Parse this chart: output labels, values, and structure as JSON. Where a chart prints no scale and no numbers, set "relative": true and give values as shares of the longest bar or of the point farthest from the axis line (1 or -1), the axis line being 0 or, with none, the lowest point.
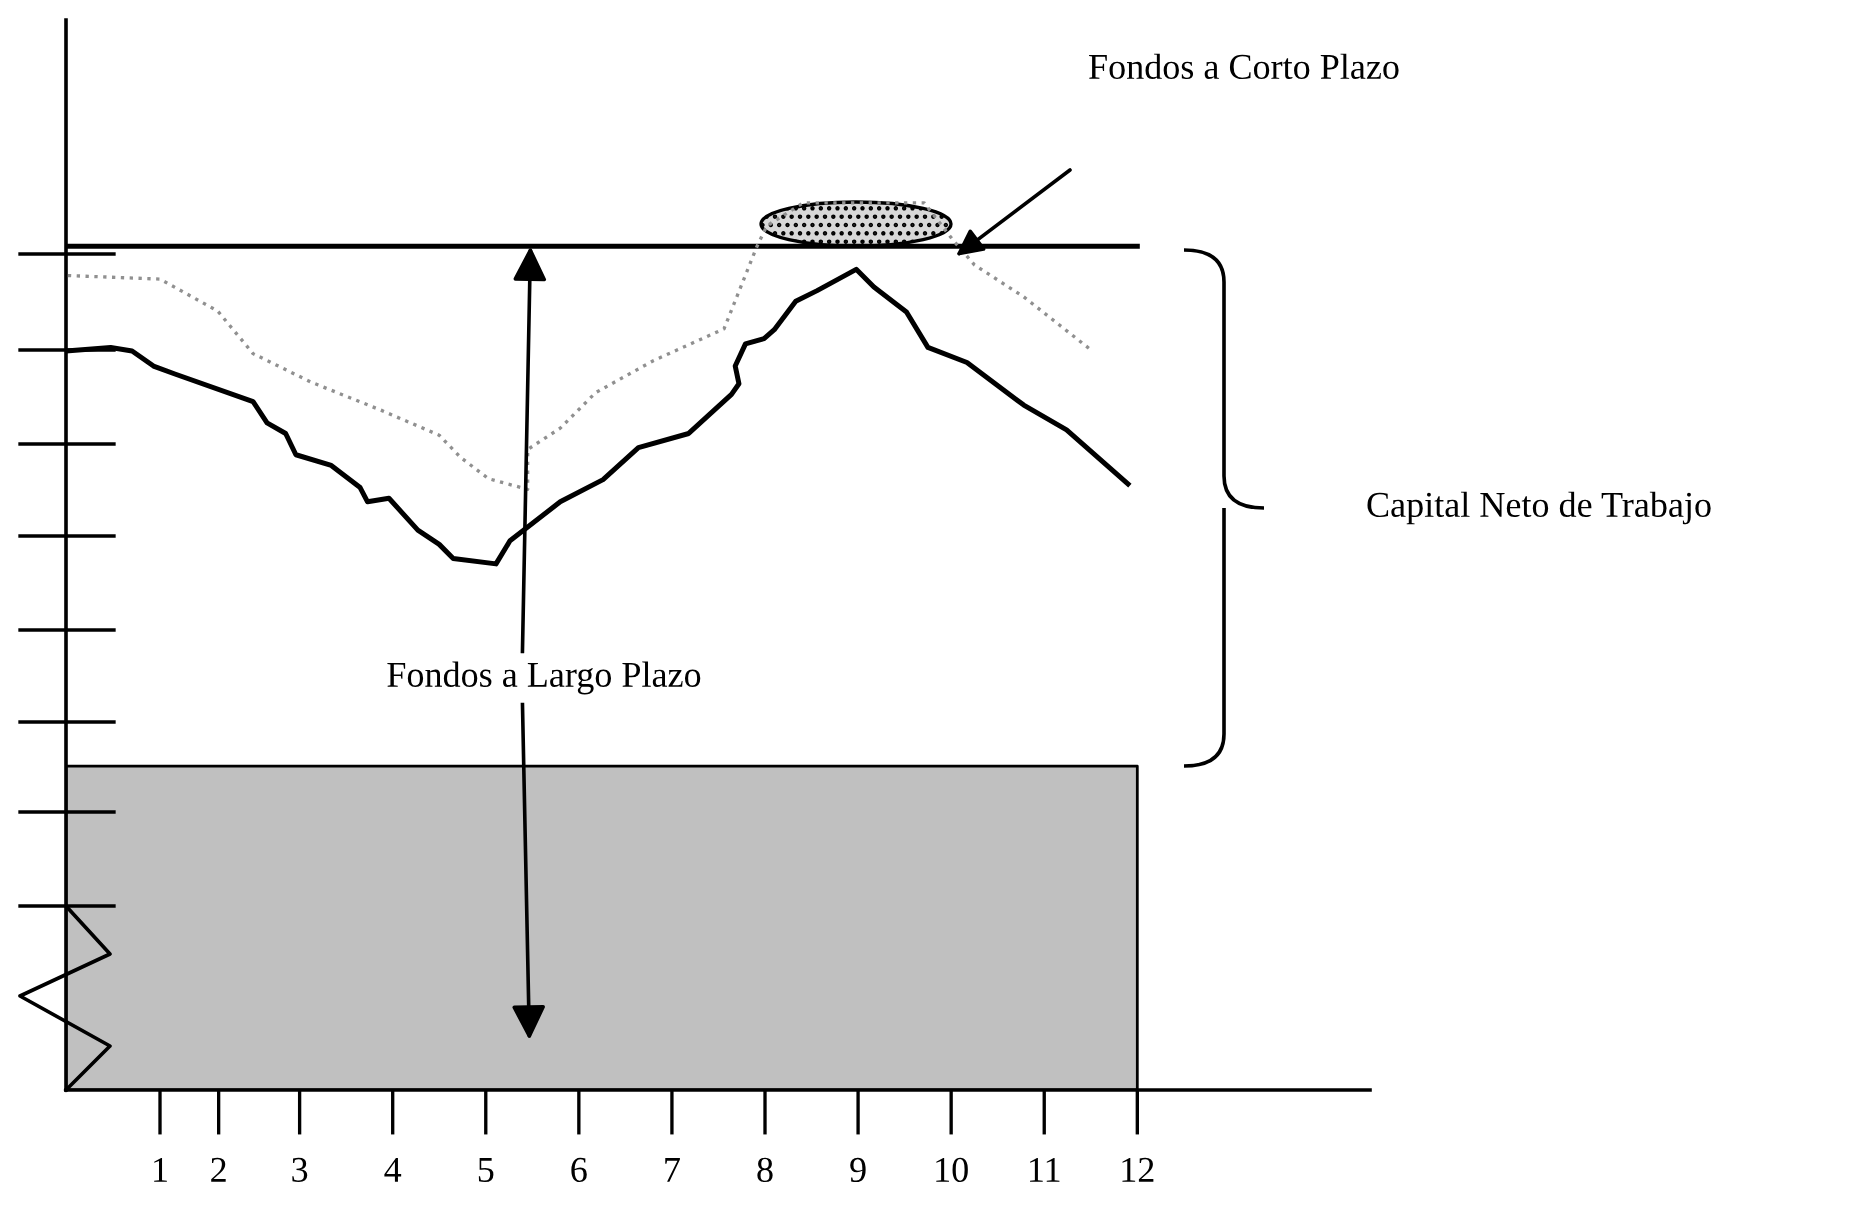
{
  "chart_data": {
    "type": "line",
    "relative": true,
    "legend": false,
    "marker": "none",
    "xlim": [
      0.49,
      14.5
    ],
    "xticks": [
      {
        "value": 1.5,
        "label": "1"
      },
      {
        "value": 2.13,
        "label": "2"
      },
      3,
      4,
      5,
      6,
      7,
      8,
      9,
      10,
      11,
      12
    ],
    "series": [
      {
        "type": "area",
        "color": "#c0c0c0",
        "x": [
          0.49,
          12
        ],
        "values": [
          0.365,
          0.365
        ]
      },
      {
        "color": "#000000",
        "line_style": "solid",
        "x": [
          0.49,
          12
        ],
        "values": [
          0.951,
          0.951
        ]
      },
      {
        "color": "#909090",
        "line_style": "dotted",
        "x": [
          0.51,
          1.5,
          2.12,
          2.5,
          3.12,
          3.88,
          4.5,
          4.73,
          5.03,
          5.45,
          5.45,
          5.8,
          6.18,
          6.8,
          7.56,
          7.91,
          8.02,
          8.41,
          9.71,
          10.02,
          10.25,
          10.78,
          11.48
        ],
        "values": [
          0.918,
          0.914,
          0.878,
          0.83,
          0.798,
          0.766,
          0.738,
          0.713,
          0.689,
          0.677,
          0.722,
          0.746,
          0.786,
          0.822,
          0.858,
          0.95,
          0.974,
          1,
          1,
          0.958,
          0.93,
          0.894,
          0.836
        ]
      },
      {
        "color": "#000000",
        "line_style": "solid",
        "x": [
          0.49,
          0.97,
          1.2,
          1.43,
          1.66,
          2.5,
          2.65,
          2.85,
          2.96,
          3.34,
          3.65,
          3.73,
          3.96,
          4.27,
          4.5,
          4.65,
          5.11,
          5.26,
          5.8,
          6.26,
          6.64,
          7.18,
          7.64,
          7.72,
          7.68,
          7.79,
          7.99,
          8.1,
          8.33,
          8.56,
          8.98,
          9.17,
          9.52,
          9.75,
          10.17,
          10.78,
          11.24,
          11.9
        ],
        "values": [
          0.833,
          0.837,
          0.833,
          0.816,
          0.807,
          0.776,
          0.752,
          0.74,
          0.716,
          0.704,
          0.679,
          0.663,
          0.667,
          0.631,
          0.615,
          0.599,
          0.593,
          0.619,
          0.663,
          0.688,
          0.724,
          0.74,
          0.784,
          0.796,
          0.816,
          0.841,
          0.847,
          0.857,
          0.889,
          0.901,
          0.925,
          0.905,
          0.877,
          0.837,
          0.82,
          0.772,
          0.744,
          0.683
        ]
      }
    ],
    "annotations": [
      "Fondos a Corto Plazo",
      {
        "text": "Fondos a Largo Plazo",
        "x": 5.48,
        "y": 0.951
      },
      "Capital Neto de Trabajo"
    ]
  }
}
